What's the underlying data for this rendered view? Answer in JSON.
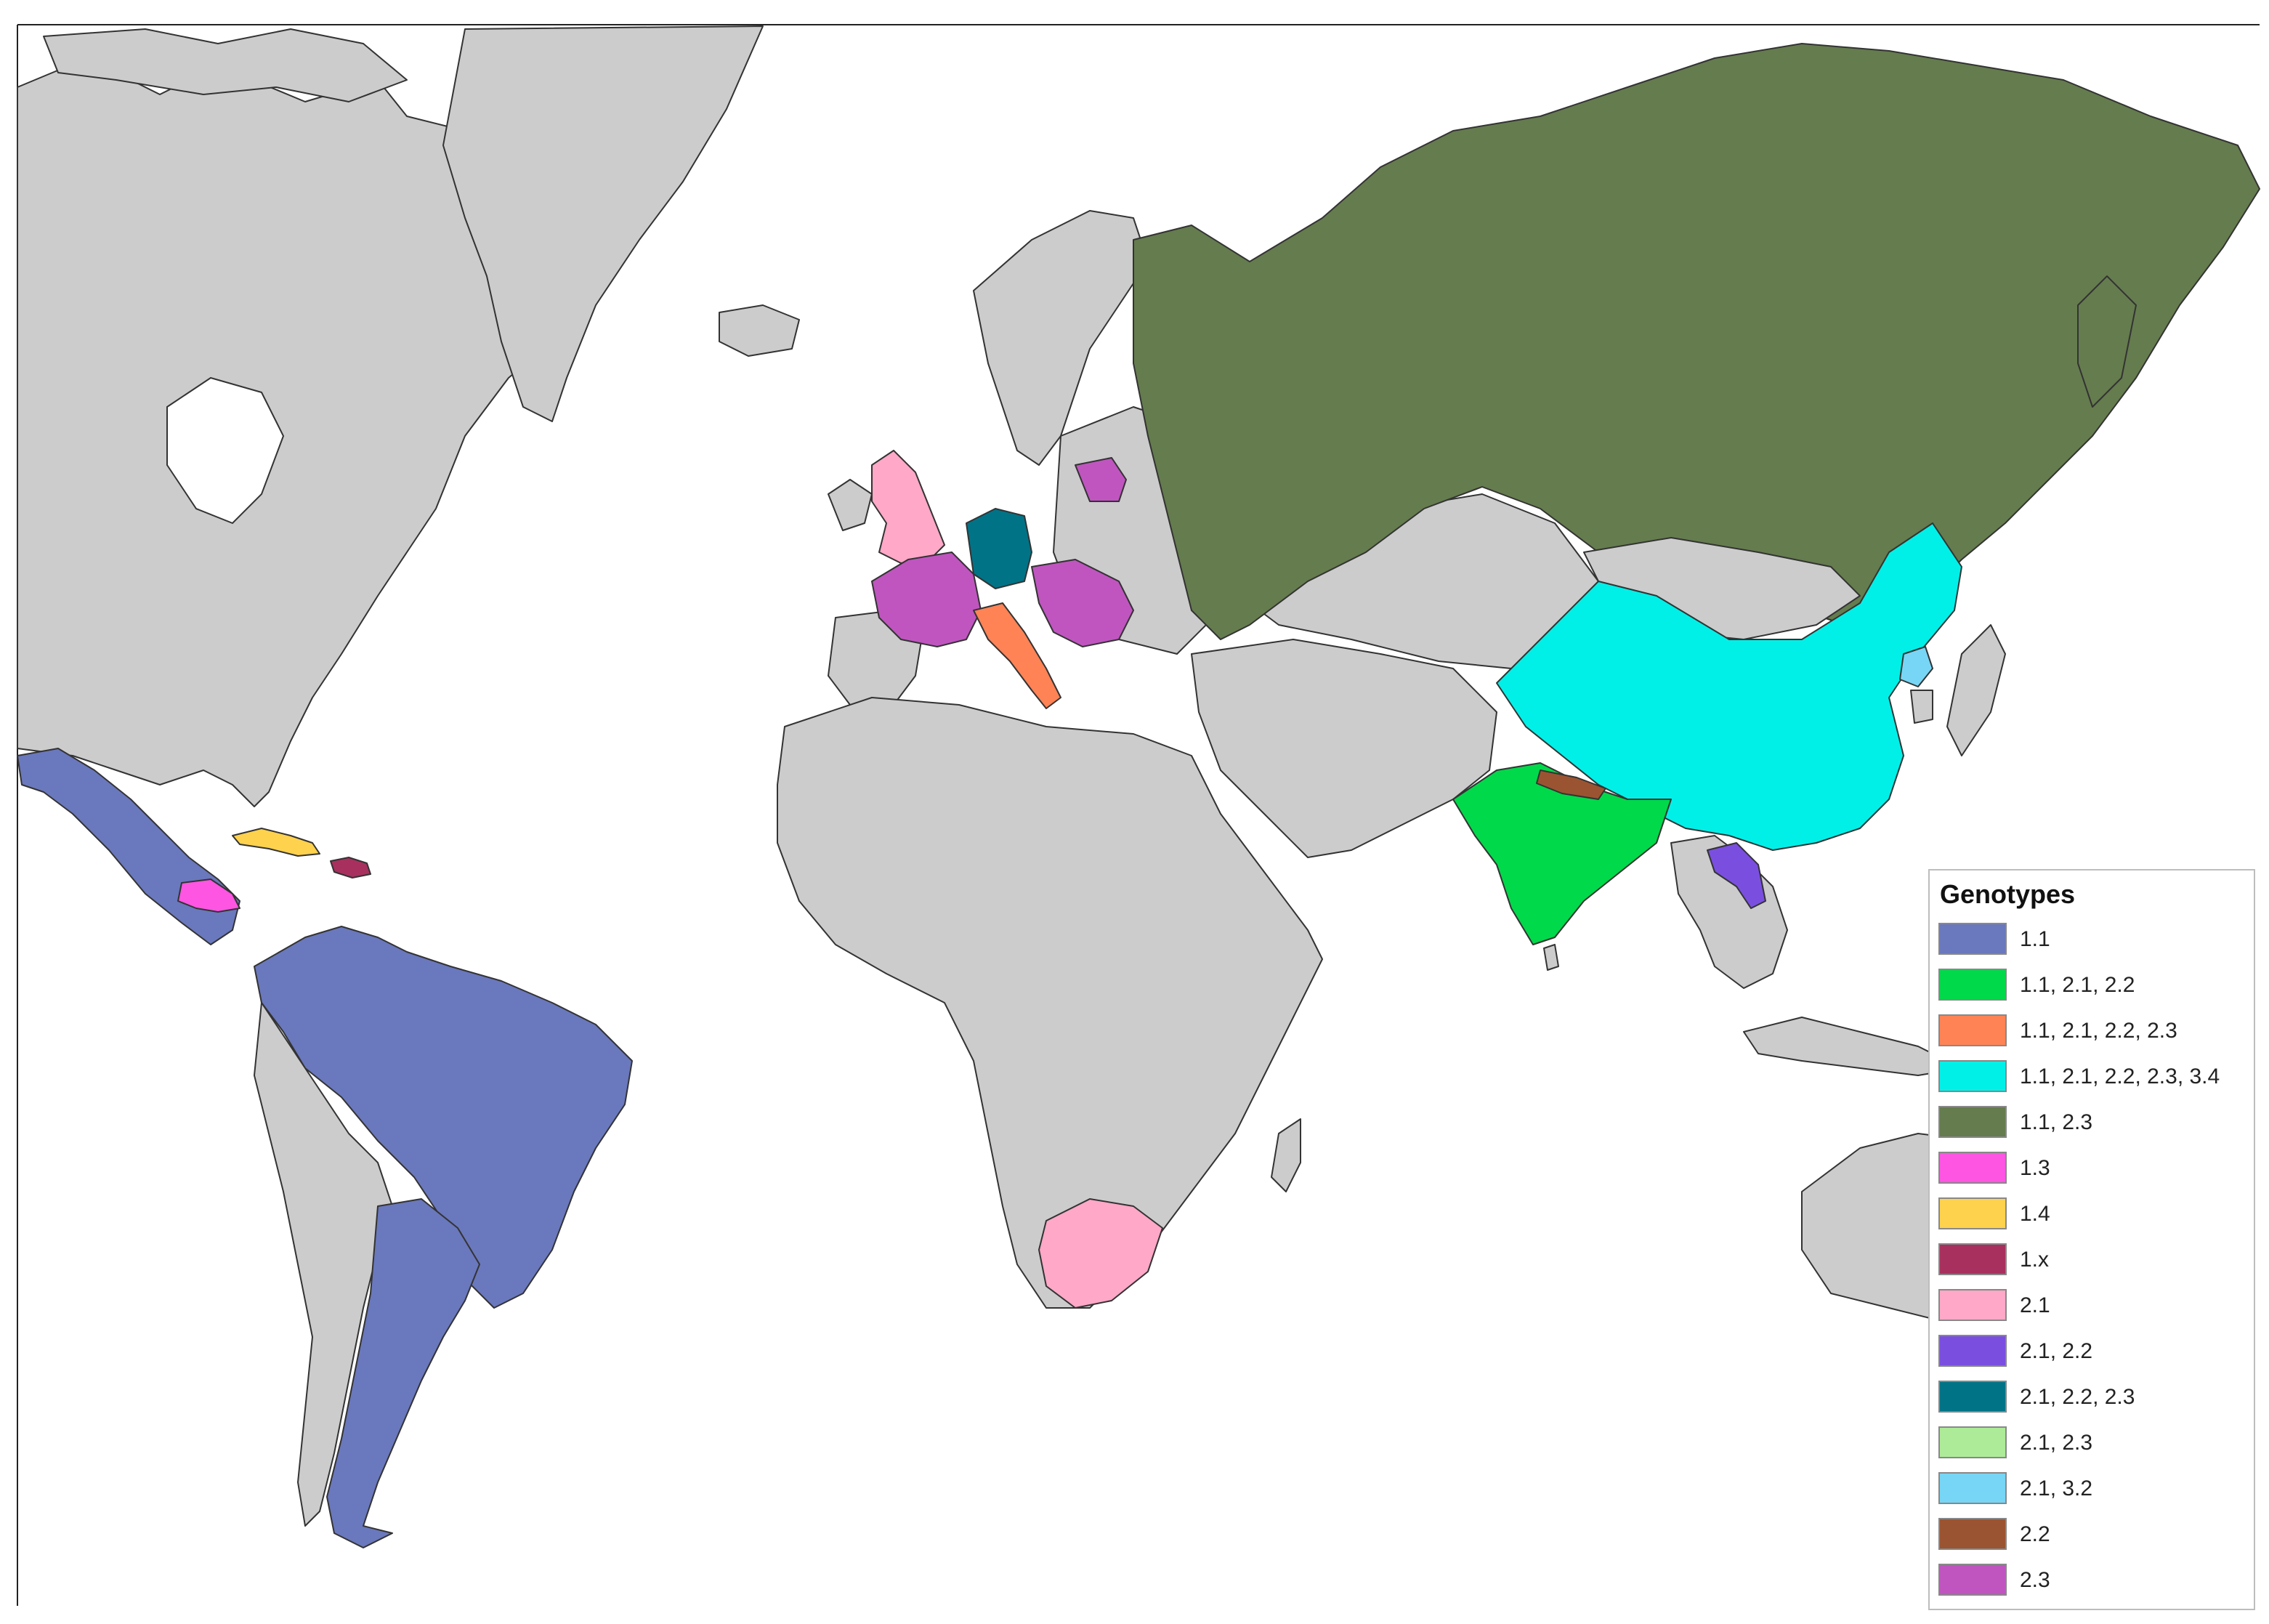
{
  "legend": {
    "title": "Genotypes",
    "items": [
      {
        "label": "1.1",
        "color": "#6a78bd"
      },
      {
        "label": "1.1, 2.1, 2.2",
        "color": "#00d94a"
      },
      {
        "label": "1.1, 2.1, 2.2, 2.3",
        "color": "#ff8355"
      },
      {
        "label": "1.1, 2.1, 2.2, 2.3, 3.4",
        "color": "#00f0e8"
      },
      {
        "label": "1.1, 2.3",
        "color": "#657c4e"
      },
      {
        "label": "1.3",
        "color": "#ff55e3"
      },
      {
        "label": "1.4",
        "color": "#ffd24d"
      },
      {
        "label": "1.x",
        "color": "#a8305e"
      },
      {
        "label": "2.1",
        "color": "#ffa8c8"
      },
      {
        "label": "2.1, 2.2",
        "color": "#7a4fe0"
      },
      {
        "label": "2.1, 2.2, 2.3",
        "color": "#007387"
      },
      {
        "label": "2.1, 2.3",
        "color": "#aeeb98"
      },
      {
        "label": "2.1, 3.2",
        "color": "#77d6f5"
      },
      {
        "label": "2.2",
        "color": "#9b5431"
      },
      {
        "label": "2.3",
        "color": "#c055c0"
      }
    ]
  },
  "colors": {
    "land_default": "#cccccc",
    "border": "#333333",
    "ocean": "#ffffff"
  },
  "regions": [
    {
      "name": "mexico-central-america",
      "genotype": "1.1"
    },
    {
      "name": "south-america-north",
      "genotype": "1.1"
    },
    {
      "name": "argentina",
      "genotype": "1.1"
    },
    {
      "name": "india",
      "genotype": "1.1, 2.1, 2.2"
    },
    {
      "name": "italy",
      "genotype": "1.1, 2.1, 2.2, 2.3"
    },
    {
      "name": "china",
      "genotype": "1.1, 2.1, 2.2, 2.3, 3.4"
    },
    {
      "name": "russia",
      "genotype": "1.1, 2.3"
    },
    {
      "name": "honduras",
      "genotype": "1.3"
    },
    {
      "name": "cuba",
      "genotype": "1.4"
    },
    {
      "name": "hispaniola",
      "genotype": "1.x"
    },
    {
      "name": "united-kingdom",
      "genotype": "2.1"
    },
    {
      "name": "south-africa",
      "genotype": "2.1"
    },
    {
      "name": "laos",
      "genotype": "2.1, 2.2"
    },
    {
      "name": "germany",
      "genotype": "2.1, 2.2, 2.3"
    },
    {
      "name": "north-korea",
      "genotype": "2.1, 3.2"
    },
    {
      "name": "nepal",
      "genotype": "2.2"
    },
    {
      "name": "france",
      "genotype": "2.3"
    },
    {
      "name": "balkans",
      "genotype": "2.3"
    }
  ]
}
